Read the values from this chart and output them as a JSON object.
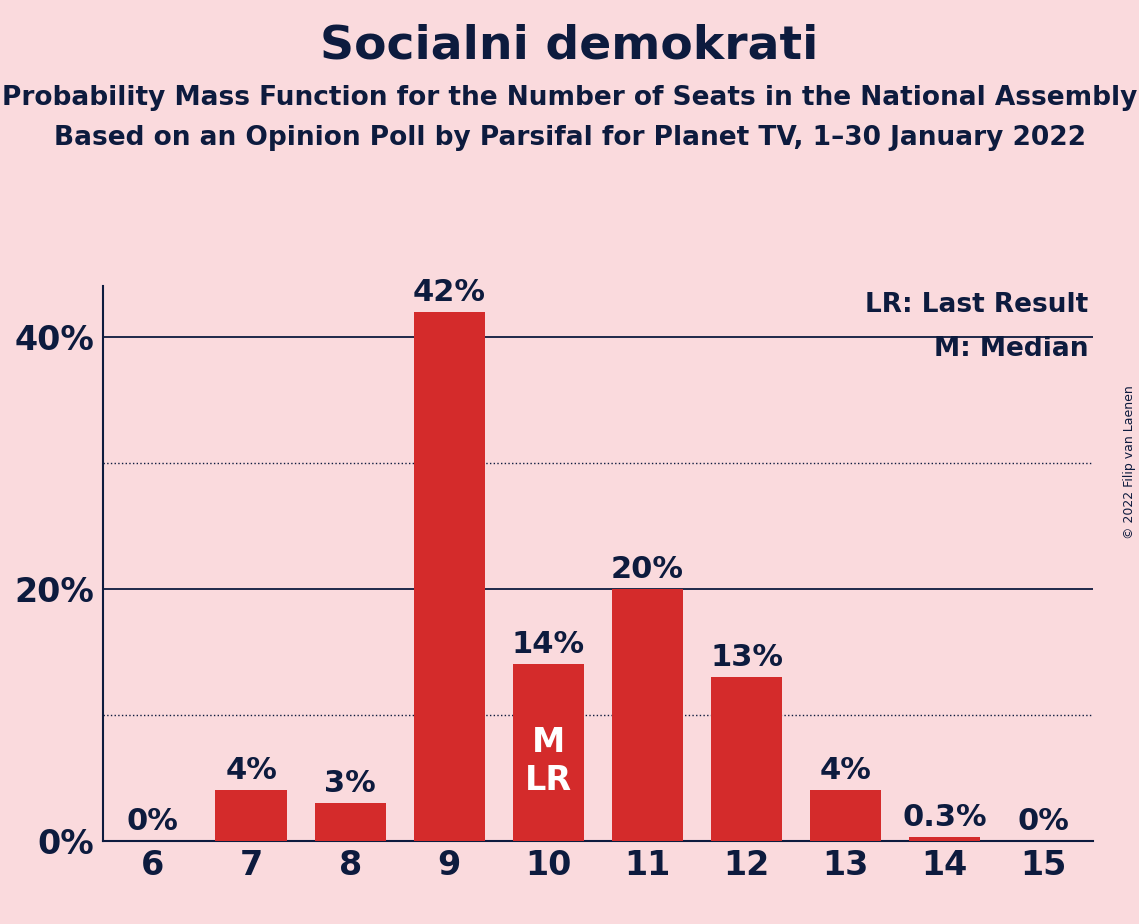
{
  "title": "Socialni demokrati",
  "subtitle1": "Probability Mass Function for the Number of Seats in the National Assembly",
  "subtitle2": "Based on an Opinion Poll by Parsifal for Planet TV, 1–30 January 2022",
  "copyright": "© 2022 Filip van Laenen",
  "categories": [
    6,
    7,
    8,
    9,
    10,
    11,
    12,
    13,
    14,
    15
  ],
  "values": [
    0.0,
    4.0,
    3.0,
    42.0,
    14.0,
    20.0,
    13.0,
    4.0,
    0.3,
    0.0
  ],
  "bar_color": "#D42B2B",
  "background_color": "#FADADD",
  "text_color": "#0D1B3E",
  "legend_lr": "LR: Last Result",
  "legend_m": "M: Median",
  "ylim": [
    0,
    44
  ],
  "solid_yticks": [
    20,
    40
  ],
  "dotted_yticks": [
    10,
    30
  ],
  "title_fontsize": 34,
  "subtitle_fontsize": 19,
  "tick_fontsize": 24,
  "bar_label_fontsize": 22,
  "legend_fontsize": 19,
  "annotation_label_fontsize": 24,
  "copyright_fontsize": 9
}
